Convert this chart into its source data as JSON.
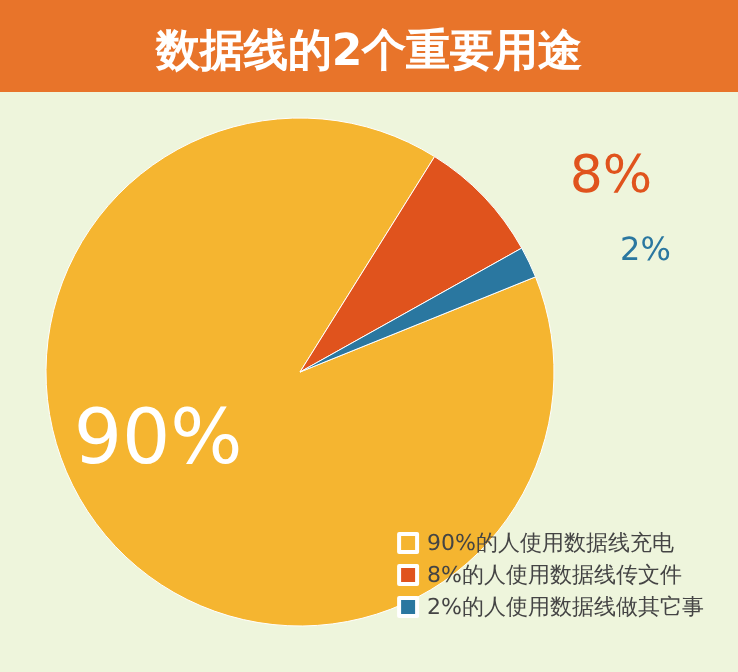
{
  "chart_data": {
    "type": "pie",
    "title": "数据线的2个重要用途",
    "categories": [
      "90%的人使用数据线充电",
      "8%的人使用数据线传文件",
      "2%的人使用数据线做其它事"
    ],
    "values": [
      90,
      8,
      2
    ],
    "colors": [
      "#f5b530",
      "#e0531d",
      "#2a77a0"
    ],
    "value_labels": [
      "90%",
      "8%",
      "2%"
    ],
    "legend": "bottom right"
  }
}
